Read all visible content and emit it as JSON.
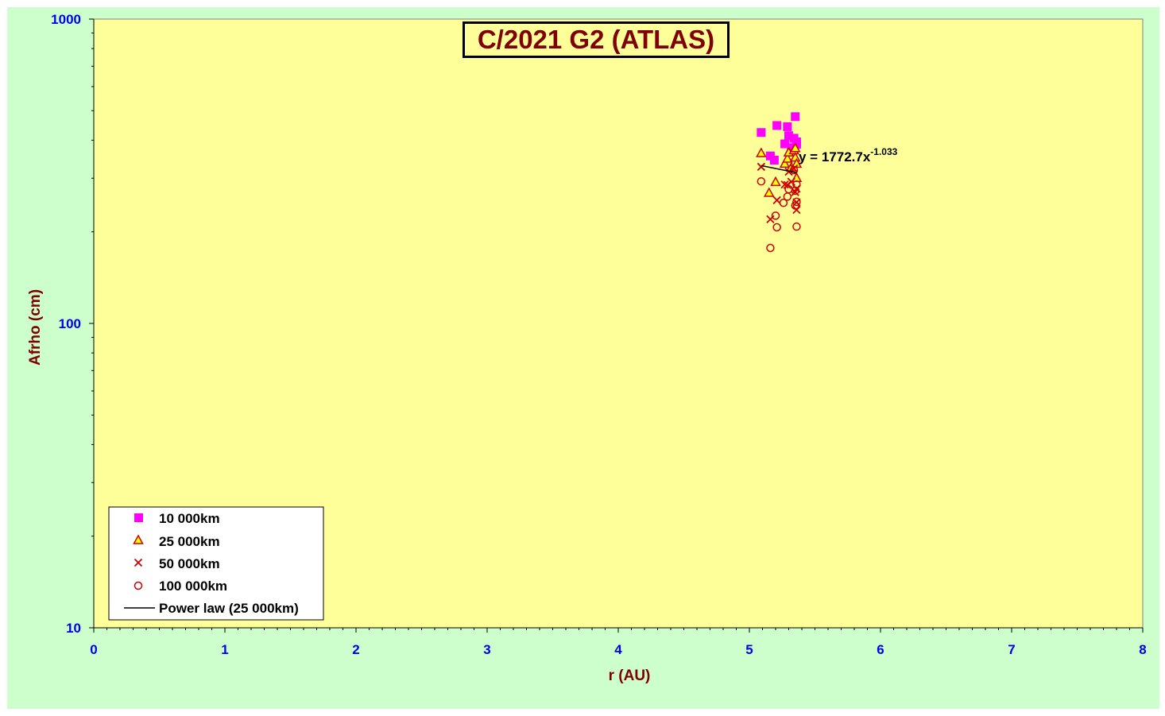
{
  "chart_data": {
    "type": "scatter",
    "title": "C/2021 G2 (ATLAS)",
    "xlabel": "r (AU)",
    "ylabel": "Afrho (cm)",
    "xlim": [
      0,
      8
    ],
    "ylim": [
      10,
      1000
    ],
    "yscale": "log",
    "x_ticks": [
      "0",
      "1",
      "2",
      "3",
      "4",
      "5",
      "6",
      "7",
      "8"
    ],
    "y_ticks": [
      "10",
      "100",
      "1000"
    ],
    "grid": false,
    "legend_position": "bottom-left",
    "colors": {
      "plot_background": "#ffff99",
      "chart_background": "#ccffcc",
      "tick_labels": "#0000ee",
      "axis_titles": "#800000",
      "series_10000": "#ff00ff",
      "series_25000_fill": "#ffff00",
      "series_25000_edge": "#cc0000",
      "series_50000": "#cc0000",
      "series_100000": "#cc0000",
      "trendline": "#000000"
    },
    "series": [
      {
        "name": "10 000km",
        "marker": "square",
        "points": [
          [
            5.09,
            424
          ],
          [
            5.16,
            355
          ],
          [
            5.19,
            344
          ],
          [
            5.21,
            447
          ],
          [
            5.27,
            389
          ],
          [
            5.29,
            443
          ],
          [
            5.3,
            414
          ],
          [
            5.32,
            378
          ],
          [
            5.33,
            371
          ],
          [
            5.34,
            406
          ],
          [
            5.35,
            478
          ],
          [
            5.36,
            395
          ],
          [
            5.36,
            388
          ]
        ]
      },
      {
        "name": "25 000km",
        "marker": "triangle",
        "points": [
          [
            5.09,
            362
          ],
          [
            5.15,
            268
          ],
          [
            5.2,
            291
          ],
          [
            5.27,
            334
          ],
          [
            5.29,
            347
          ],
          [
            5.3,
            364
          ],
          [
            5.32,
            325
          ],
          [
            5.34,
            370
          ],
          [
            5.35,
            376
          ],
          [
            5.35,
            350
          ],
          [
            5.36,
            334
          ],
          [
            5.36,
            300
          ]
        ]
      },
      {
        "name": "50 000km",
        "marker": "x",
        "points": [
          [
            5.09,
            327
          ],
          [
            5.16,
            220
          ],
          [
            5.21,
            254
          ],
          [
            5.27,
            286
          ],
          [
            5.29,
            285
          ],
          [
            5.3,
            315
          ],
          [
            5.32,
            292
          ],
          [
            5.34,
            323
          ],
          [
            5.35,
            270
          ],
          [
            5.36,
            250
          ],
          [
            5.36,
            236
          ],
          [
            5.36,
            277
          ]
        ]
      },
      {
        "name": "100 000km",
        "marker": "circle",
        "points": [
          [
            5.09,
            293
          ],
          [
            5.16,
            177
          ],
          [
            5.2,
            226
          ],
          [
            5.21,
            207
          ],
          [
            5.26,
            249
          ],
          [
            5.29,
            261
          ],
          [
            5.3,
            276
          ],
          [
            5.34,
            319
          ],
          [
            5.35,
            273
          ],
          [
            5.35,
            244
          ],
          [
            5.36,
            251
          ],
          [
            5.36,
            208
          ],
          [
            5.36,
            286
          ]
        ]
      }
    ],
    "trendline": {
      "name": "Power law (25 000km)",
      "equation_prefix": "y = 1772.7x",
      "equation_exponent": "-1.033",
      "coefficient": 1772.7,
      "exponent": -1.033,
      "x_range": [
        5.09,
        5.36
      ]
    }
  }
}
